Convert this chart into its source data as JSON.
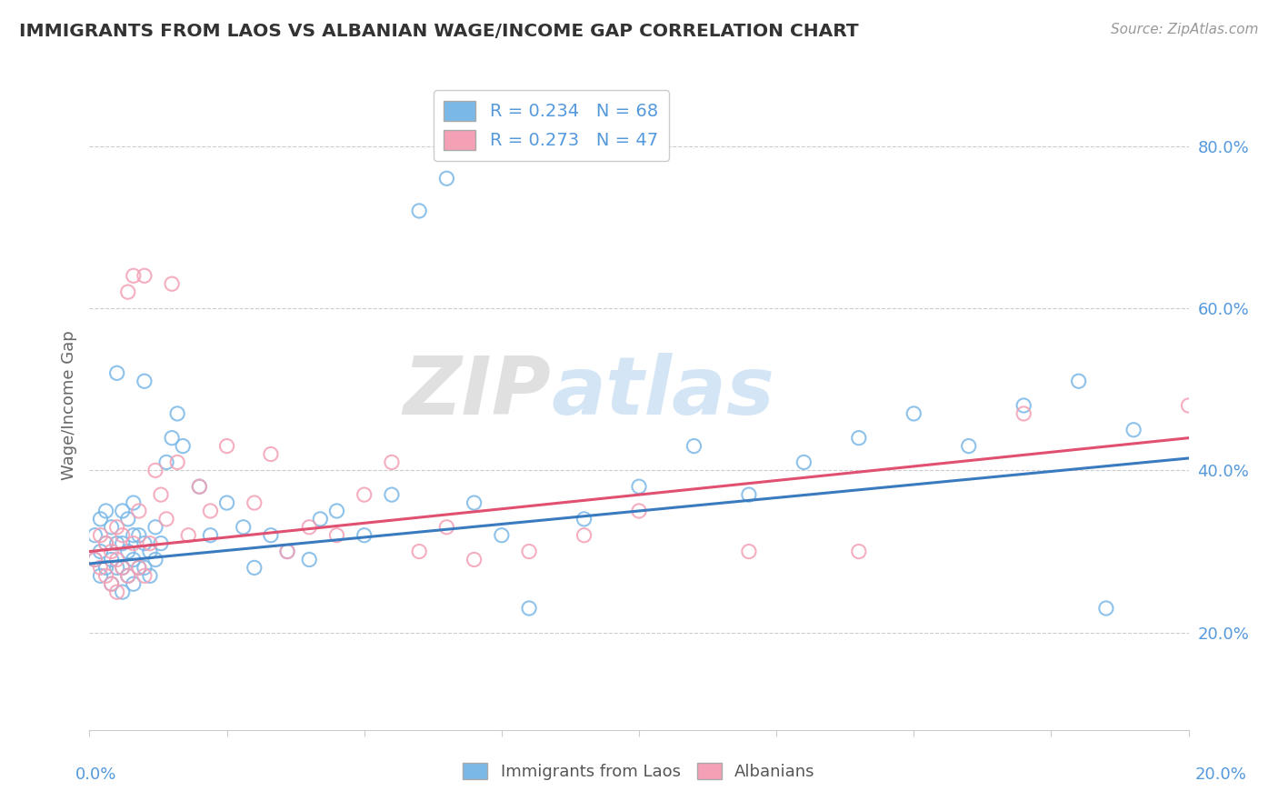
{
  "title": "IMMIGRANTS FROM LAOS VS ALBANIAN WAGE/INCOME GAP CORRELATION CHART",
  "source": "Source: ZipAtlas.com",
  "ylabel": "Wage/Income Gap",
  "xlim": [
    0.0,
    0.2
  ],
  "ylim": [
    0.08,
    0.88
  ],
  "yticks": [
    0.2,
    0.4,
    0.6,
    0.8
  ],
  "ytick_labels": [
    "20.0%",
    "40.0%",
    "60.0%",
    "80.0%"
  ],
  "xticks": [
    0.0,
    0.025,
    0.05,
    0.075,
    0.1,
    0.125,
    0.15,
    0.175,
    0.2
  ],
  "series1_color": "#7ab8e8",
  "series2_color": "#f4a0b5",
  "line1_color": "#3a7bbf",
  "line2_color": "#e05070",
  "R1": 0.234,
  "N1": 68,
  "R2": 0.273,
  "N2": 47,
  "legend_label1": "Immigrants from Laos",
  "legend_label2": "Albanians",
  "series1_x": [
    0.001,
    0.001,
    0.002,
    0.002,
    0.002,
    0.003,
    0.003,
    0.003,
    0.004,
    0.004,
    0.004,
    0.005,
    0.005,
    0.005,
    0.006,
    0.006,
    0.006,
    0.006,
    0.007,
    0.007,
    0.007,
    0.008,
    0.008,
    0.008,
    0.008,
    0.009,
    0.009,
    0.01,
    0.01,
    0.01,
    0.011,
    0.011,
    0.012,
    0.012,
    0.013,
    0.014,
    0.015,
    0.016,
    0.017,
    0.02,
    0.022,
    0.025,
    0.028,
    0.03,
    0.033,
    0.036,
    0.04,
    0.042,
    0.045,
    0.05,
    0.055,
    0.06,
    0.065,
    0.07,
    0.075,
    0.08,
    0.09,
    0.1,
    0.11,
    0.12,
    0.13,
    0.14,
    0.15,
    0.16,
    0.17,
    0.18,
    0.185,
    0.19
  ],
  "series1_y": [
    0.29,
    0.32,
    0.27,
    0.3,
    0.34,
    0.28,
    0.31,
    0.35,
    0.26,
    0.29,
    0.33,
    0.28,
    0.31,
    0.52,
    0.25,
    0.28,
    0.31,
    0.35,
    0.27,
    0.3,
    0.34,
    0.26,
    0.29,
    0.32,
    0.36,
    0.28,
    0.32,
    0.28,
    0.31,
    0.51,
    0.27,
    0.3,
    0.29,
    0.33,
    0.31,
    0.41,
    0.44,
    0.47,
    0.43,
    0.38,
    0.32,
    0.36,
    0.33,
    0.28,
    0.32,
    0.3,
    0.29,
    0.34,
    0.35,
    0.32,
    0.37,
    0.72,
    0.76,
    0.36,
    0.32,
    0.23,
    0.34,
    0.38,
    0.43,
    0.37,
    0.41,
    0.44,
    0.47,
    0.43,
    0.48,
    0.51,
    0.23,
    0.45
  ],
  "series2_x": [
    0.001,
    0.002,
    0.002,
    0.003,
    0.003,
    0.004,
    0.004,
    0.005,
    0.005,
    0.005,
    0.006,
    0.006,
    0.007,
    0.007,
    0.008,
    0.008,
    0.009,
    0.009,
    0.01,
    0.01,
    0.011,
    0.012,
    0.013,
    0.014,
    0.015,
    0.016,
    0.018,
    0.02,
    0.022,
    0.025,
    0.03,
    0.033,
    0.036,
    0.04,
    0.045,
    0.05,
    0.055,
    0.06,
    0.065,
    0.07,
    0.08,
    0.09,
    0.1,
    0.12,
    0.14,
    0.17,
    0.2
  ],
  "series2_y": [
    0.29,
    0.28,
    0.32,
    0.27,
    0.31,
    0.26,
    0.3,
    0.25,
    0.29,
    0.33,
    0.28,
    0.32,
    0.27,
    0.62,
    0.31,
    0.64,
    0.28,
    0.35,
    0.27,
    0.64,
    0.31,
    0.4,
    0.37,
    0.34,
    0.63,
    0.41,
    0.32,
    0.38,
    0.35,
    0.43,
    0.36,
    0.42,
    0.3,
    0.33,
    0.32,
    0.37,
    0.41,
    0.3,
    0.33,
    0.29,
    0.3,
    0.32,
    0.35,
    0.3,
    0.3,
    0.47,
    0.48
  ]
}
